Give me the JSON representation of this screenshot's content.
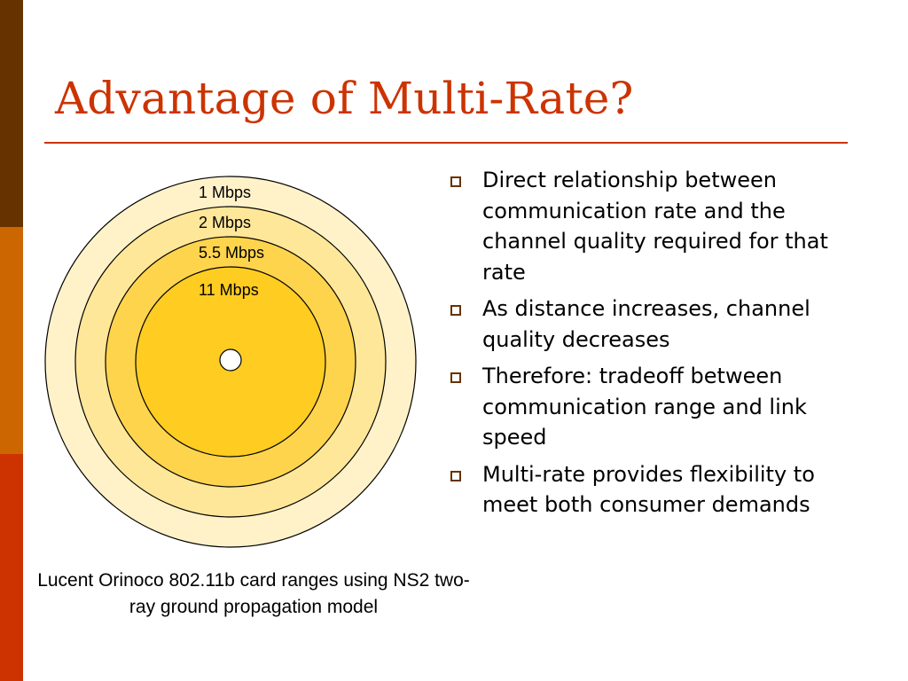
{
  "slide": {
    "title": "Advantage of Multi-Rate?",
    "accent_colors": [
      "#663300",
      "#cc6600",
      "#cc3300"
    ],
    "title_color": "#cc3300"
  },
  "diagram": {
    "rings": [
      {
        "label": "1 Mbps",
        "fill": "#fff2c9"
      },
      {
        "label": "2 Mbps",
        "fill": "#ffe799"
      },
      {
        "label": "5.5 Mbps",
        "fill": "#ffd44d"
      },
      {
        "label": "11 Mbps",
        "fill": "#ffcc22"
      }
    ],
    "caption": "Lucent Orinoco 802.11b card ranges using NS2 two-ray ground propagation model"
  },
  "bullets": [
    "Direct relationship between communication rate and the channel quality required for that rate",
    "As distance increases, channel quality decreases",
    "Therefore: tradeoff between communication range and link speed",
    "Multi-rate provides flexibility to meet both consumer demands"
  ]
}
